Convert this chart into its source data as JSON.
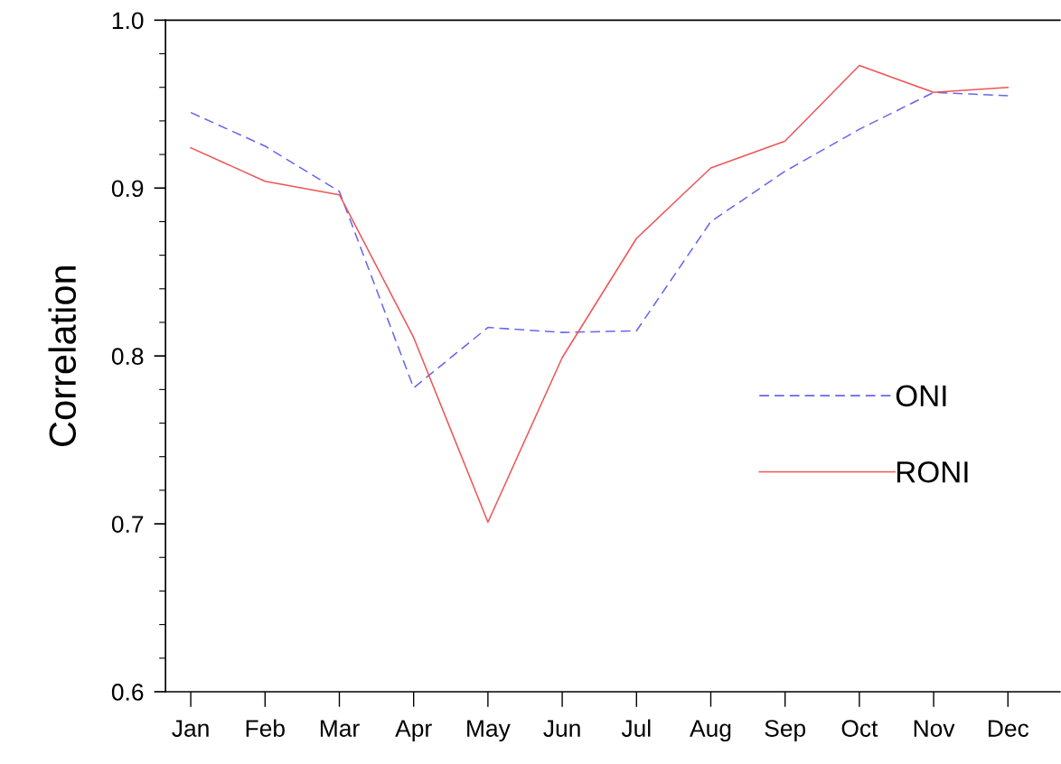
{
  "chart_data": {
    "type": "line",
    "ylabel": "Correlation",
    "categories": [
      "Jan",
      "Feb",
      "Mar",
      "Apr",
      "May",
      "Jun",
      "Jul",
      "Aug",
      "Sep",
      "Oct",
      "Nov",
      "Dec"
    ],
    "ylim": [
      0.6,
      1.0
    ],
    "yticks": [
      {
        "value": 0.6,
        "label": "0.6"
      },
      {
        "value": 0.7,
        "label": "0.7"
      },
      {
        "value": 0.8,
        "label": "0.8"
      },
      {
        "value": 0.9,
        "label": "0.9"
      },
      {
        "value": 1.0,
        "label": "1.0"
      }
    ],
    "series": [
      {
        "name": "ONI",
        "color": "#6666ee",
        "line_style": "dashed",
        "values": [
          0.945,
          0.925,
          0.898,
          0.781,
          0.817,
          0.814,
          0.815,
          0.88,
          0.91,
          0.935,
          0.957,
          0.955
        ]
      },
      {
        "name": "RONI",
        "color": "#ee5555",
        "line_style": "solid",
        "values": [
          0.924,
          0.904,
          0.896,
          0.811,
          0.701,
          0.799,
          0.87,
          0.912,
          0.928,
          0.973,
          0.957,
          0.96
        ]
      }
    ],
    "legend": "right",
    "grid": false,
    "marker": "none"
  }
}
